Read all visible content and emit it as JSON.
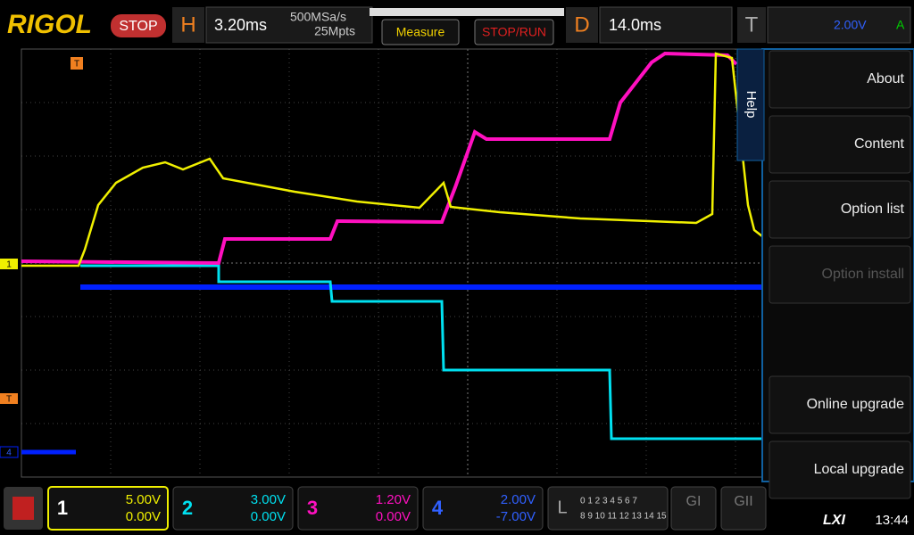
{
  "header": {
    "brand": "RIGOL",
    "run_state": "STOP",
    "h_label": "H",
    "timebase": "3.20ms",
    "sample_rate": "500MSa/s",
    "memory": "25Mpts",
    "measure": "Measure",
    "stop_run": "STOP/RUN",
    "d_label": "D",
    "delay": "14.0ms",
    "t_label": "T",
    "trigger_level": "2.00V",
    "trigger_mode": "A"
  },
  "markers": {
    "ch1": "1",
    "trig_top": "T",
    "trig_side": "T",
    "ch4": "4"
  },
  "menu": {
    "tab": "Help",
    "items": [
      "About",
      "Content",
      "Option list",
      "Option install",
      "Online upgrade",
      "Local upgrade"
    ]
  },
  "channels": [
    {
      "number": "1",
      "scale": "5.00V",
      "offset": "0.00V"
    },
    {
      "number": "2",
      "scale": "3.00V",
      "offset": "0.00V"
    },
    {
      "number": "3",
      "scale": "1.20V",
      "offset": "0.00V"
    },
    {
      "number": "4",
      "scale": "2.00V",
      "offset": "-7.00V"
    }
  ],
  "logic": {
    "label": "L",
    "row1": "0 1 2 3  4 5 6 7",
    "row2": "8 9 10 11 12 13 14 15"
  },
  "gens": [
    "GI",
    "GII"
  ],
  "status": {
    "lxi": "LXI",
    "time": "13:44"
  }
}
